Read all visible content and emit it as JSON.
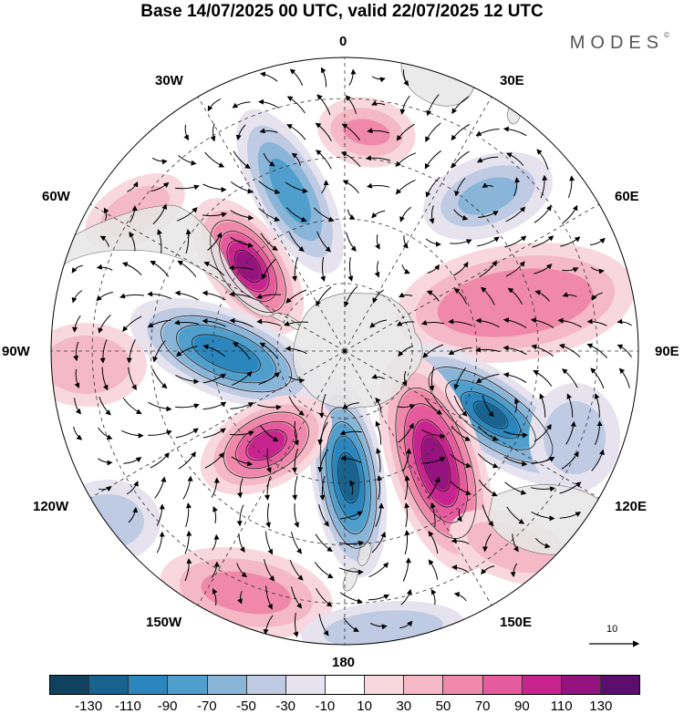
{
  "title": "Base 14/07/2025 00 UTC, valid 22/07/2025 12 UTC",
  "brand": "MODES",
  "brand_mark": "©",
  "longitude_labels": {
    "top": "0",
    "upper_left": "30W",
    "upper_right": "30E",
    "mid_upper_left": "60W",
    "mid_upper_right": "60E",
    "left": "90W",
    "right": "90E",
    "mid_lower_left": "120W",
    "mid_lower_right": "120E",
    "lower_left": "150W",
    "lower_right": "150E",
    "bottom": "180"
  },
  "vector_scale_label": "10",
  "colorbar": {
    "colors": [
      "#10415f",
      "#17628e",
      "#2a86bd",
      "#4f9ecc",
      "#89b5d8",
      "#bfcbe3",
      "#e6e3ef",
      "#ffffff",
      "#f8d8de",
      "#f4b8c6",
      "#ef88aa",
      "#e65a9e",
      "#c8248f",
      "#95137e",
      "#5c0e6f"
    ],
    "ticks": [
      "-130",
      "-110",
      "-90",
      "-70",
      "-50",
      "-30",
      "-10",
      "10",
      "30",
      "50",
      "70",
      "90",
      "110",
      "130"
    ]
  },
  "anomaly_colors": {
    "neg_1": "#e6e3ef",
    "neg_2": "#bfcbe3",
    "neg_3": "#89b5d8",
    "neg_4": "#4f9ecc",
    "neg_5": "#2a86bd",
    "neg_6": "#17628e",
    "pos_1": "#f8d8de",
    "pos_2": "#f4b8c6",
    "pos_3": "#ef88aa",
    "pos_4": "#e65a9e",
    "pos_5": "#c8248f",
    "pos_6": "#95137e"
  }
}
